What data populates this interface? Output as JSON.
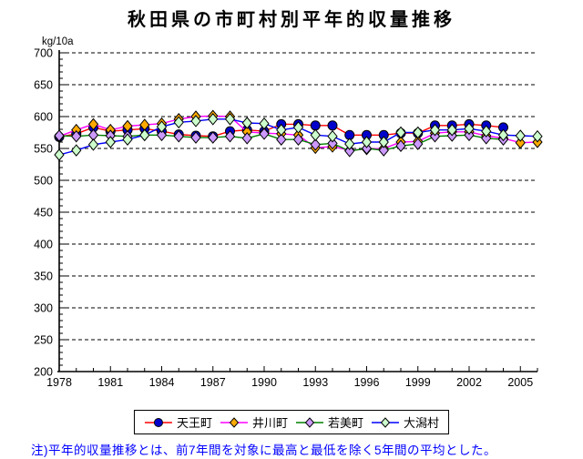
{
  "title": "秋田県の市町村別平年的収量推移",
  "note": {
    "text": "注)平年的収量推移とは、前7年間を対象に最高と最低を除く5年間の平均とした。"
  },
  "colors": {
    "note_text": "#0000ff",
    "axis": "#000000",
    "gridline": "#000000",
    "background": "#ffffff"
  },
  "chart_data": {
    "type": "line",
    "title": "秋田県の市町村別平年的収量推移",
    "ylabel": "kg/10a",
    "xlabel": "",
    "ylim": [
      200,
      700
    ],
    "ytick_step": 50,
    "ytick_minor_step": 10,
    "grid": "horizontal-dashed",
    "legend_position": "bottom",
    "x": [
      1978,
      1979,
      1980,
      1981,
      1982,
      1983,
      1984,
      1985,
      1986,
      1987,
      1988,
      1989,
      1990,
      1991,
      1992,
      1993,
      1994,
      1995,
      1996,
      1997,
      1998,
      1999,
      2000,
      2001,
      2002,
      2003,
      2004,
      2005,
      2006
    ],
    "xtick_labels": [
      1978,
      1981,
      1984,
      1987,
      1990,
      1993,
      1996,
      1999,
      2002,
      2005
    ],
    "series": [
      {
        "name": "天王町",
        "line_color": "#ff0000",
        "marker": "circle",
        "marker_color": "#0000cc",
        "values": [
          568,
          573,
          583,
          577,
          579,
          581,
          577,
          572,
          570,
          569,
          577,
          579,
          577,
          588,
          588,
          586,
          586,
          571,
          571,
          571,
          574,
          574,
          586,
          586,
          588,
          586,
          583,
          null,
          null
        ]
      },
      {
        "name": "井川町",
        "line_color": "#ff00ff",
        "marker": "diamond",
        "marker_color": "#ffaa00",
        "values": [
          569,
          579,
          588,
          579,
          585,
          587,
          589,
          596,
          600,
          601,
          600,
          576,
          574,
          573,
          571,
          551,
          553,
          547,
          549,
          550,
          560,
          561,
          574,
          576,
          576,
          570,
          566,
          559,
          560
        ]
      },
      {
        "name": "若美町",
        "line_color": "#008000",
        "marker": "diamond",
        "marker_color": "#cc99ff",
        "values": [
          570,
          569,
          571,
          570,
          569,
          571,
          571,
          569,
          567,
          567,
          569,
          566,
          573,
          564,
          564,
          556,
          558,
          546,
          550,
          547,
          554,
          557,
          569,
          570,
          571,
          566,
          564,
          null,
          null
        ]
      },
      {
        "name": "大潟村",
        "line_color": "#0000ff",
        "marker": "diamond",
        "marker_color": "#ccffcc",
        "values": [
          540,
          547,
          556,
          560,
          564,
          571,
          584,
          591,
          593,
          596,
          596,
          590,
          589,
          579,
          583,
          571,
          569,
          557,
          560,
          560,
          575,
          575,
          579,
          579,
          581,
          577,
          571,
          570,
          569
        ]
      }
    ]
  }
}
